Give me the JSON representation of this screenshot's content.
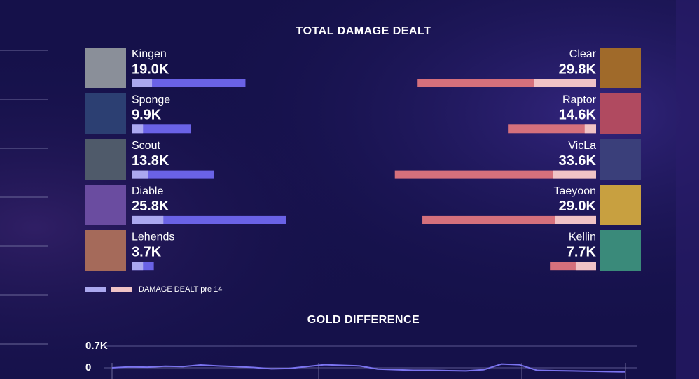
{
  "chart_data": [
    {
      "type": "bar",
      "title": "TOTAL DAMAGE DEALT",
      "legend": "DAMAGE DEALT pre 14",
      "xlim": [
        0,
        40000
      ],
      "teams": [
        {
          "side": "left",
          "color": "#6a62e6",
          "pre_color": "#aba8ef",
          "players": [
            "Kingen",
            "Sponge",
            "Scout",
            "Diable",
            "Lehends"
          ],
          "values": [
            19000,
            9900,
            13800,
            25800,
            3700
          ],
          "value_labels": [
            "19.0K",
            "9.9K",
            "13.8K",
            "25.8K",
            "3.7K"
          ],
          "pre14": [
            3400,
            1900,
            2700,
            5300,
            1900
          ]
        },
        {
          "side": "right",
          "color": "#d5707c",
          "pre_color": "#f0c3c6",
          "players": [
            "Clear",
            "Raptor",
            "VicLa",
            "Taeyoon",
            "Kellin"
          ],
          "values": [
            29800,
            14600,
            33600,
            29000,
            7700
          ],
          "value_labels": [
            "29.8K",
            "14.6K",
            "33.6K",
            "29.0K",
            "7.7K"
          ],
          "pre14": [
            10400,
            1900,
            7200,
            6800,
            3400
          ]
        }
      ]
    },
    {
      "type": "line",
      "title": "GOLD DIFFERENCE",
      "color": "#7b74f0",
      "ylim": [
        -700,
        700
      ],
      "yticks": [
        {
          "value": 700,
          "label": "0.7K"
        },
        0
      ],
      "values": [
        0,
        30,
        20,
        50,
        40,
        90,
        60,
        40,
        10,
        -30,
        -20,
        40,
        100,
        80,
        60,
        -40,
        -60,
        -80,
        -80,
        -90,
        -100,
        -60,
        120,
        100,
        -80,
        -90,
        -100,
        -110,
        -120,
        -130
      ]
    }
  ]
}
